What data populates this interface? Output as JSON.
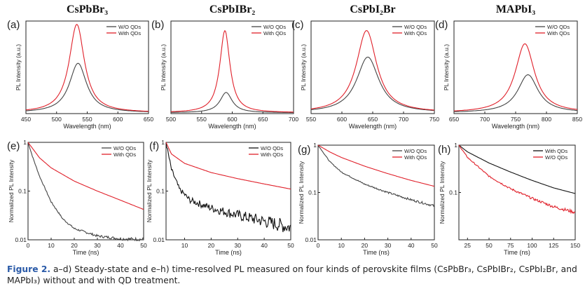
{
  "caption": {
    "label": "Figure 2.",
    "text": "a–d) Steady-state and e–h) time-resolved PL measured on four kinds of perovskite films (CsPbBr₃, CsPbIBr₂, CsPbI₂Br, and MAPbI₃) without and with QD treatment."
  },
  "colors": {
    "wo": "#444444",
    "with": "#e0202a",
    "black": "#111111"
  },
  "chart_data": [
    {
      "id": "a",
      "type": "line",
      "panel_label": "(a)",
      "title": "CsPbBr₃",
      "xlabel": "Wavelength (nm)",
      "ylabel": "PL Intensity (a.u.)",
      "xlim": [
        450,
        650
      ],
      "xticks": [
        450,
        500,
        550,
        600,
        650
      ],
      "yticks": [],
      "log": false,
      "legend": [
        "W/O QDs",
        "With QDs"
      ],
      "legend_position": "top-right",
      "series": [
        {
          "name": "W/O QDs",
          "color": "wo",
          "peak": 535,
          "amp": 0.56,
          "width": 17,
          "base": 0
        },
        {
          "name": "With QDs",
          "color": "with",
          "peak": 533,
          "amp": 1.0,
          "width": 15,
          "base": 0
        }
      ]
    },
    {
      "id": "b",
      "type": "line",
      "panel_label": "(b)",
      "title": "CsPbIBr₂",
      "xlabel": "Wavelength (nm)",
      "ylabel": "PL Intensity (a.u.)",
      "xlim": [
        500,
        700
      ],
      "xticks": [
        500,
        550,
        600,
        650,
        700
      ],
      "yticks": [],
      "log": false,
      "legend": [
        "W/O QDs",
        "With QDs"
      ],
      "legend_position": "top-right",
      "series": [
        {
          "name": "W/O QDs",
          "color": "wo",
          "peak": 590,
          "amp": 0.23,
          "width": 12,
          "base": 0
        },
        {
          "name": "With QDs",
          "color": "with",
          "peak": 588,
          "amp": 0.93,
          "width": 10,
          "base": 0
        }
      ]
    },
    {
      "id": "c",
      "type": "line",
      "panel_label": "(c)",
      "title": "CsPbI₂Br",
      "xlabel": "Wavelength (nm)",
      "ylabel": "PL Intensity (a.u.)",
      "xlim": [
        550,
        750
      ],
      "xticks": [
        550,
        600,
        650,
        700,
        750
      ],
      "yticks": [],
      "log": false,
      "legend": [
        "W/O QDs",
        "With QDs"
      ],
      "legend_position": "top-right",
      "series": [
        {
          "name": "W/O QDs",
          "color": "wo",
          "peak": 642,
          "amp": 0.63,
          "width": 22,
          "base": 0
        },
        {
          "name": "With QDs",
          "color": "with",
          "peak": 640,
          "amp": 0.93,
          "width": 20,
          "base": 0
        }
      ]
    },
    {
      "id": "d",
      "type": "line",
      "panel_label": "(d)",
      "title": "MAPbI₃",
      "xlabel": "Wavelength (nm)",
      "ylabel": "PL Intensity (a.u.)",
      "xlim": [
        650,
        850
      ],
      "xticks": [
        650,
        700,
        750,
        800,
        850
      ],
      "yticks": [],
      "log": false,
      "legend": [
        "W/O QDs",
        "With QDs"
      ],
      "legend_position": "top-right",
      "series": [
        {
          "name": "W/O QDs",
          "color": "wo",
          "peak": 770,
          "amp": 0.43,
          "width": 20,
          "base": 0
        },
        {
          "name": "With QDs",
          "color": "with",
          "peak": 765,
          "amp": 0.78,
          "width": 19,
          "base": 0
        }
      ]
    },
    {
      "id": "e",
      "type": "line",
      "panel_label": "(e)",
      "title": "",
      "xlabel": "Time (ns)",
      "ylabel": "Normalized PL Intensity",
      "xlim": [
        0,
        50
      ],
      "xticks": [
        0,
        10,
        20,
        30,
        40,
        50
      ],
      "ylim": [
        0.01,
        1
      ],
      "yticks": [
        0.01,
        0.1,
        1
      ],
      "log": true,
      "legend": [
        "W/O QDs",
        "With QDs"
      ],
      "legend_position": "top-right",
      "series": [
        {
          "name": "W/O QDs",
          "color": "wo",
          "points": [
            [
              0,
              1
            ],
            [
              2,
              0.5
            ],
            [
              5,
              0.2
            ],
            [
              10,
              0.06
            ],
            [
              15,
              0.027
            ],
            [
              20,
              0.017
            ],
            [
              30,
              0.012
            ],
            [
              40,
              0.0105
            ],
            [
              50,
              0.0102
            ]
          ],
          "noise": 0.02
        },
        {
          "name": "With QDs",
          "color": "with",
          "points": [
            [
              0,
              1
            ],
            [
              5,
              0.48
            ],
            [
              10,
              0.3
            ],
            [
              20,
              0.16
            ],
            [
              30,
              0.1
            ],
            [
              40,
              0.065
            ],
            [
              50,
              0.042
            ]
          ],
          "noise": 0
        }
      ]
    },
    {
      "id": "f",
      "type": "line",
      "panel_label": "(f)",
      "title": "",
      "xlabel": "Time (ns)",
      "ylabel": "Normalized PL Intensity",
      "xlim": [
        3,
        50
      ],
      "xticks": [
        10,
        20,
        30,
        40,
        50
      ],
      "ylim": [
        0.01,
        1
      ],
      "yticks": [
        0.01,
        0.1,
        1
      ],
      "log": true,
      "legend": [
        "W/O QDs",
        "With QDs"
      ],
      "legend_position": "top-right",
      "series": [
        {
          "name": "W/O QDs",
          "color": "black",
          "points": [
            [
              3,
              1
            ],
            [
              5,
              0.28
            ],
            [
              8,
              0.11
            ],
            [
              12,
              0.065
            ],
            [
              20,
              0.045
            ],
            [
              30,
              0.032
            ],
            [
              40,
              0.024
            ],
            [
              50,
              0.018
            ]
          ],
          "noise": 0.09
        },
        {
          "name": "With QDs",
          "color": "with",
          "points": [
            [
              3,
              1
            ],
            [
              5,
              0.58
            ],
            [
              10,
              0.37
            ],
            [
              20,
              0.24
            ],
            [
              30,
              0.18
            ],
            [
              40,
              0.14
            ],
            [
              50,
              0.11
            ]
          ],
          "noise": 0
        }
      ]
    },
    {
      "id": "g",
      "type": "line",
      "panel_label": "(g)",
      "title": "",
      "xlabel": "Time (ns)",
      "ylabel": "Normalized PL Intensity",
      "xlim": [
        0,
        50
      ],
      "xticks": [
        0,
        10,
        20,
        30,
        40,
        50
      ],
      "ylim": [
        0.01,
        1
      ],
      "yticks": [
        0.01,
        0.1,
        1
      ],
      "log": true,
      "legend": [
        "W/O QDs",
        "With QDs"
      ],
      "legend_position": "top-right",
      "series": [
        {
          "name": "W/O QDs",
          "color": "wo",
          "points": [
            [
              0,
              1
            ],
            [
              5,
              0.45
            ],
            [
              10,
              0.27
            ],
            [
              20,
              0.15
            ],
            [
              30,
              0.1
            ],
            [
              40,
              0.07
            ],
            [
              50,
              0.052
            ]
          ],
          "noise": 0.015
        },
        {
          "name": "With QDs",
          "color": "with",
          "points": [
            [
              0,
              1
            ],
            [
              5,
              0.72
            ],
            [
              10,
              0.55
            ],
            [
              20,
              0.36
            ],
            [
              30,
              0.25
            ],
            [
              40,
              0.18
            ],
            [
              50,
              0.135
            ]
          ],
          "noise": 0
        }
      ]
    },
    {
      "id": "h",
      "type": "line",
      "panel_label": "(h)",
      "title": "",
      "xlabel": "Time (ns)",
      "ylabel": "Normalized PL Intensity",
      "xlim": [
        15,
        150
      ],
      "xticks": [
        25,
        50,
        75,
        100,
        125,
        150
      ],
      "ylim": [
        0.01,
        1
      ],
      "yticks": [
        0.1,
        1
      ],
      "log": true,
      "legend": [
        "With QDs",
        "W/O QDs"
      ],
      "legend_position": "top-right",
      "series": [
        {
          "name": "With QDs",
          "color": "black",
          "points": [
            [
              15,
              1
            ],
            [
              25,
              0.72
            ],
            [
              50,
              0.42
            ],
            [
              75,
              0.27
            ],
            [
              100,
              0.18
            ],
            [
              125,
              0.125
            ],
            [
              150,
              0.095
            ]
          ],
          "noise": 0
        },
        {
          "name": "W/O QDs",
          "color": "with",
          "points": [
            [
              15,
              1
            ],
            [
              25,
              0.55
            ],
            [
              50,
              0.22
            ],
            [
              75,
              0.12
            ],
            [
              100,
              0.075
            ],
            [
              125,
              0.05
            ],
            [
              150,
              0.038
            ]
          ],
          "noise": 0.02
        }
      ]
    }
  ]
}
